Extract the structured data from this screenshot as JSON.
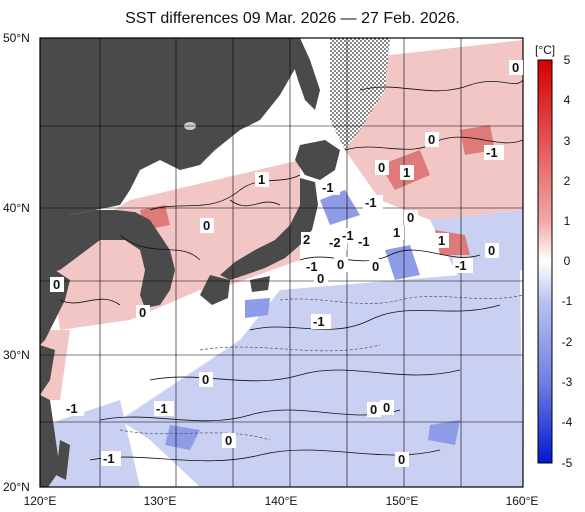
{
  "title": "SST differences 09 Mar. 2026 — 27 Feb. 2026.",
  "colorbar": {
    "unit": "[°C]",
    "ticks": [
      "5",
      "4",
      "3",
      "2",
      "1",
      "0",
      "-1",
      "-2",
      "-3",
      "-4",
      "-5"
    ]
  },
  "axes": {
    "lat_labels": [
      "50°N",
      "40°N",
      "30°N",
      "20°N"
    ],
    "lon_labels": [
      "120°E",
      "130°E",
      "140°E",
      "150°E",
      "160°E"
    ]
  },
  "contour_labels": [
    "0",
    "0",
    "0",
    "-1",
    "-1",
    "1",
    "1",
    "-1",
    "0",
    "1",
    "0",
    "2",
    "-2",
    "-1",
    "-1",
    "1",
    "0",
    "0",
    "-1",
    "0",
    "0",
    "0",
    "-1",
    "0",
    "0",
    "-1",
    "-1",
    "-1",
    "0",
    "0",
    "0",
    "-1",
    "0"
  ],
  "colors": {
    "land": "#4a4a4a",
    "ocean_neutral": "#ffffff",
    "warm": "#d23a3a",
    "cold": "#3a4fd2"
  }
}
